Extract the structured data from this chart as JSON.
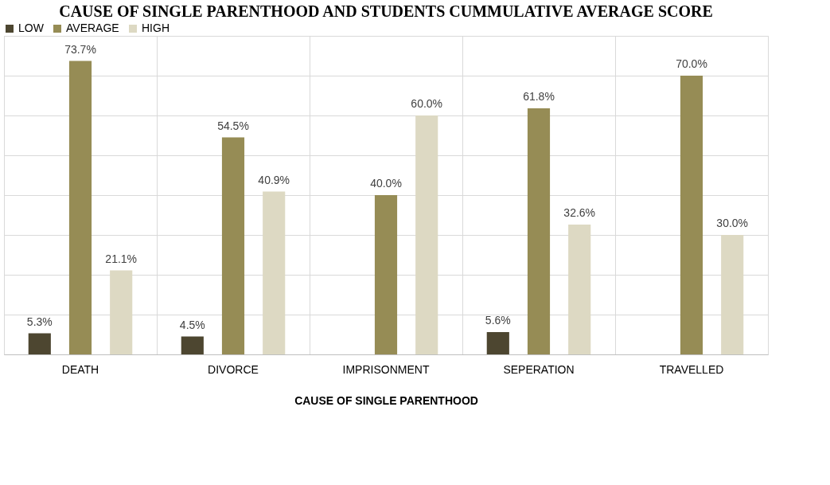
{
  "chart_data": {
    "type": "bar",
    "title": "CAUSE OF SINGLE PARENTHOOD AND STUDENTS CUMMULATIVE AVERAGE SCORE",
    "xlabel": "CAUSE OF SINGLE PARENTHOOD",
    "categories": [
      "DEATH",
      "DIVORCE",
      "IMPRISONMENT",
      "SEPERATION",
      "TRAVELLED"
    ],
    "series": [
      {
        "name": "LOW",
        "color": "#4d4630",
        "values": [
          5.3,
          4.5,
          null,
          5.6,
          null
        ],
        "value_labels": [
          "5.3%",
          "4.5%",
          null,
          "5.6%",
          null
        ]
      },
      {
        "name": "AVERAGE",
        "color": "#968c55",
        "values": [
          73.7,
          54.5,
          40.0,
          61.8,
          70.0
        ],
        "value_labels": [
          "73.7%",
          "54.5%",
          "40.0%",
          "61.8%",
          "70.0%"
        ]
      },
      {
        "name": "HIGH",
        "color": "#ddd9c3",
        "values": [
          21.1,
          40.9,
          60.0,
          32.6,
          30.0
        ],
        "value_labels": [
          "21.1%",
          "40.9%",
          "60.0%",
          "32.6%",
          "30.0%"
        ]
      }
    ],
    "ylim": [
      0,
      80
    ],
    "yticks": [
      {
        "value": 0,
        "label": null
      },
      {
        "value": 10,
        "label": null
      },
      {
        "value": 20,
        "label": null
      },
      {
        "value": 30,
        "label": null
      },
      {
        "value": 40,
        "label": null
      },
      {
        "value": 50,
        "label": null
      },
      {
        "value": 60,
        "label": null
      },
      {
        "value": 70,
        "label": null
      },
      {
        "value": 80,
        "label": null
      }
    ],
    "tick_labels": "x",
    "grid": true,
    "legend": "top"
  }
}
